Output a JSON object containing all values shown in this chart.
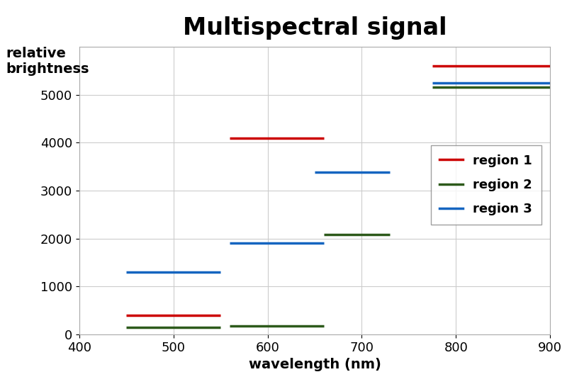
{
  "title": "Multispectral signal",
  "xlabel": "wavelength (nm)",
  "ylabel_line1": "relative",
  "ylabel_line2": "brightness",
  "xlim": [
    400,
    900
  ],
  "ylim": [
    0,
    6000
  ],
  "xticks": [
    400,
    500,
    600,
    700,
    800,
    900
  ],
  "yticks": [
    0,
    1000,
    2000,
    3000,
    4000,
    5000
  ],
  "background": "#ffffff",
  "segments": {
    "region1": {
      "color": "#cc0000",
      "label": "region 1",
      "lines": [
        [
          450,
          550,
          400
        ],
        [
          560,
          660,
          4100
        ],
        [
          775,
          900,
          5600
        ]
      ]
    },
    "region2": {
      "color": "#2d5a1b",
      "label": "region 2",
      "lines": [
        [
          450,
          550,
          150
        ],
        [
          560,
          660,
          175
        ],
        [
          660,
          730,
          2080
        ],
        [
          775,
          900,
          5150
        ]
      ]
    },
    "region3": {
      "color": "#1565c0",
      "label": "region 3",
      "lines": [
        [
          450,
          550,
          1300
        ],
        [
          560,
          660,
          1900
        ],
        [
          650,
          730,
          3380
        ],
        [
          775,
          900,
          5250
        ]
      ]
    }
  },
  "linewidth": 2.5,
  "title_fontsize": 24,
  "label_fontsize": 14,
  "tick_fontsize": 13,
  "legend_fontsize": 13
}
